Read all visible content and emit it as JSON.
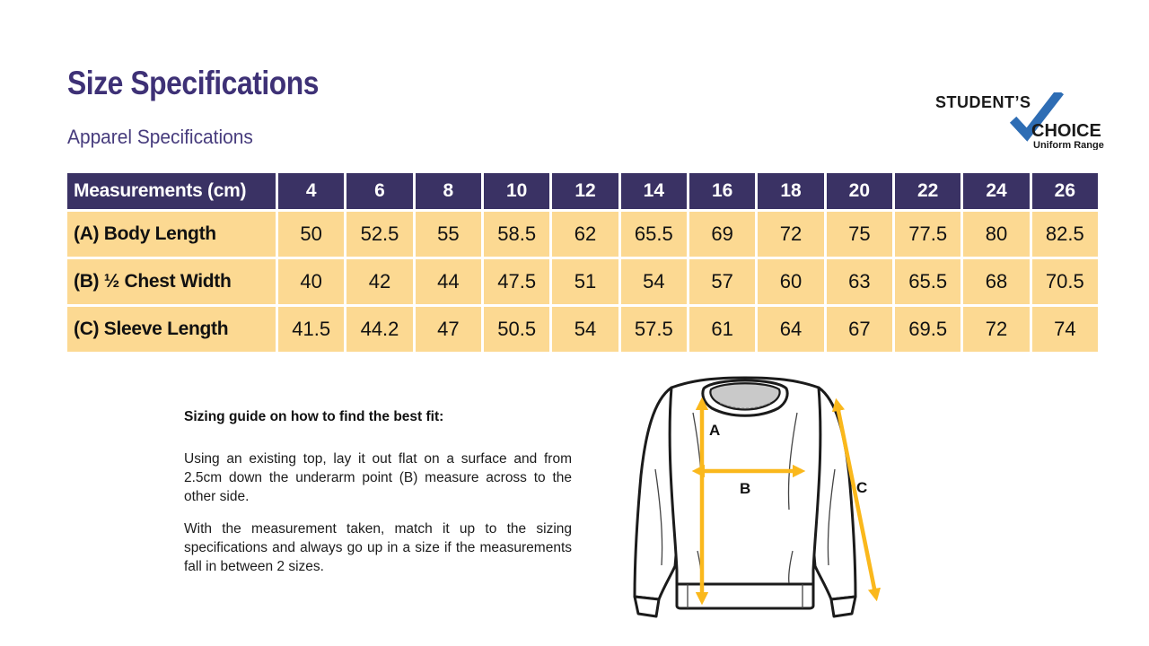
{
  "page": {
    "title": "Size Specifications",
    "subtitle": "Apparel Specifications"
  },
  "logo": {
    "line1": "STUDENT’S",
    "line2": "CHOICE",
    "line3": "Uniform Range"
  },
  "table": {
    "header": [
      "Measurements (cm)",
      "4",
      "6",
      "8",
      "10",
      "12",
      "14",
      "16",
      "18",
      "20",
      "22",
      "24",
      "26"
    ],
    "rows": [
      {
        "label": "(A) Body Length",
        "values": [
          "50",
          "52.5",
          "55",
          "58.5",
          "62",
          "65.5",
          "69",
          "72",
          "75",
          "77.5",
          "80",
          "82.5"
        ]
      },
      {
        "label": "(B) ½ Chest Width",
        "values": [
          "40",
          "42",
          "44",
          "47.5",
          "51",
          "54",
          "57",
          "60",
          "63",
          "65.5",
          "68",
          "70.5"
        ]
      },
      {
        "label": "(C) Sleeve Length",
        "values": [
          "41.5",
          "44.2",
          "47",
          "50.5",
          "54",
          "57.5",
          "61",
          "64",
          "67",
          "69.5",
          "72",
          "74"
        ]
      }
    ]
  },
  "guide": {
    "heading": "Sizing guide on how to find the best fit:",
    "paragraphs": [
      "Using an existing top, lay it out flat on a surface and from 2.5cm down the underarm point (B) measure across to the other side.",
      "With the measurement taken, match it up to the sizing specifications and always go up in a size if the measurements fall in between 2 sizes."
    ]
  },
  "diagram": {
    "labels": {
      "a": "A",
      "b": "B",
      "c": "C"
    }
  },
  "colors": {
    "navy": "#3A3264",
    "yellow": "#FCD992",
    "title-purple": "#3E3176",
    "subtitle-purple": "#473C7D",
    "gold": "#FAB81C",
    "logo-blue": "#2E6DB4",
    "ink": "#1A1A1A"
  }
}
